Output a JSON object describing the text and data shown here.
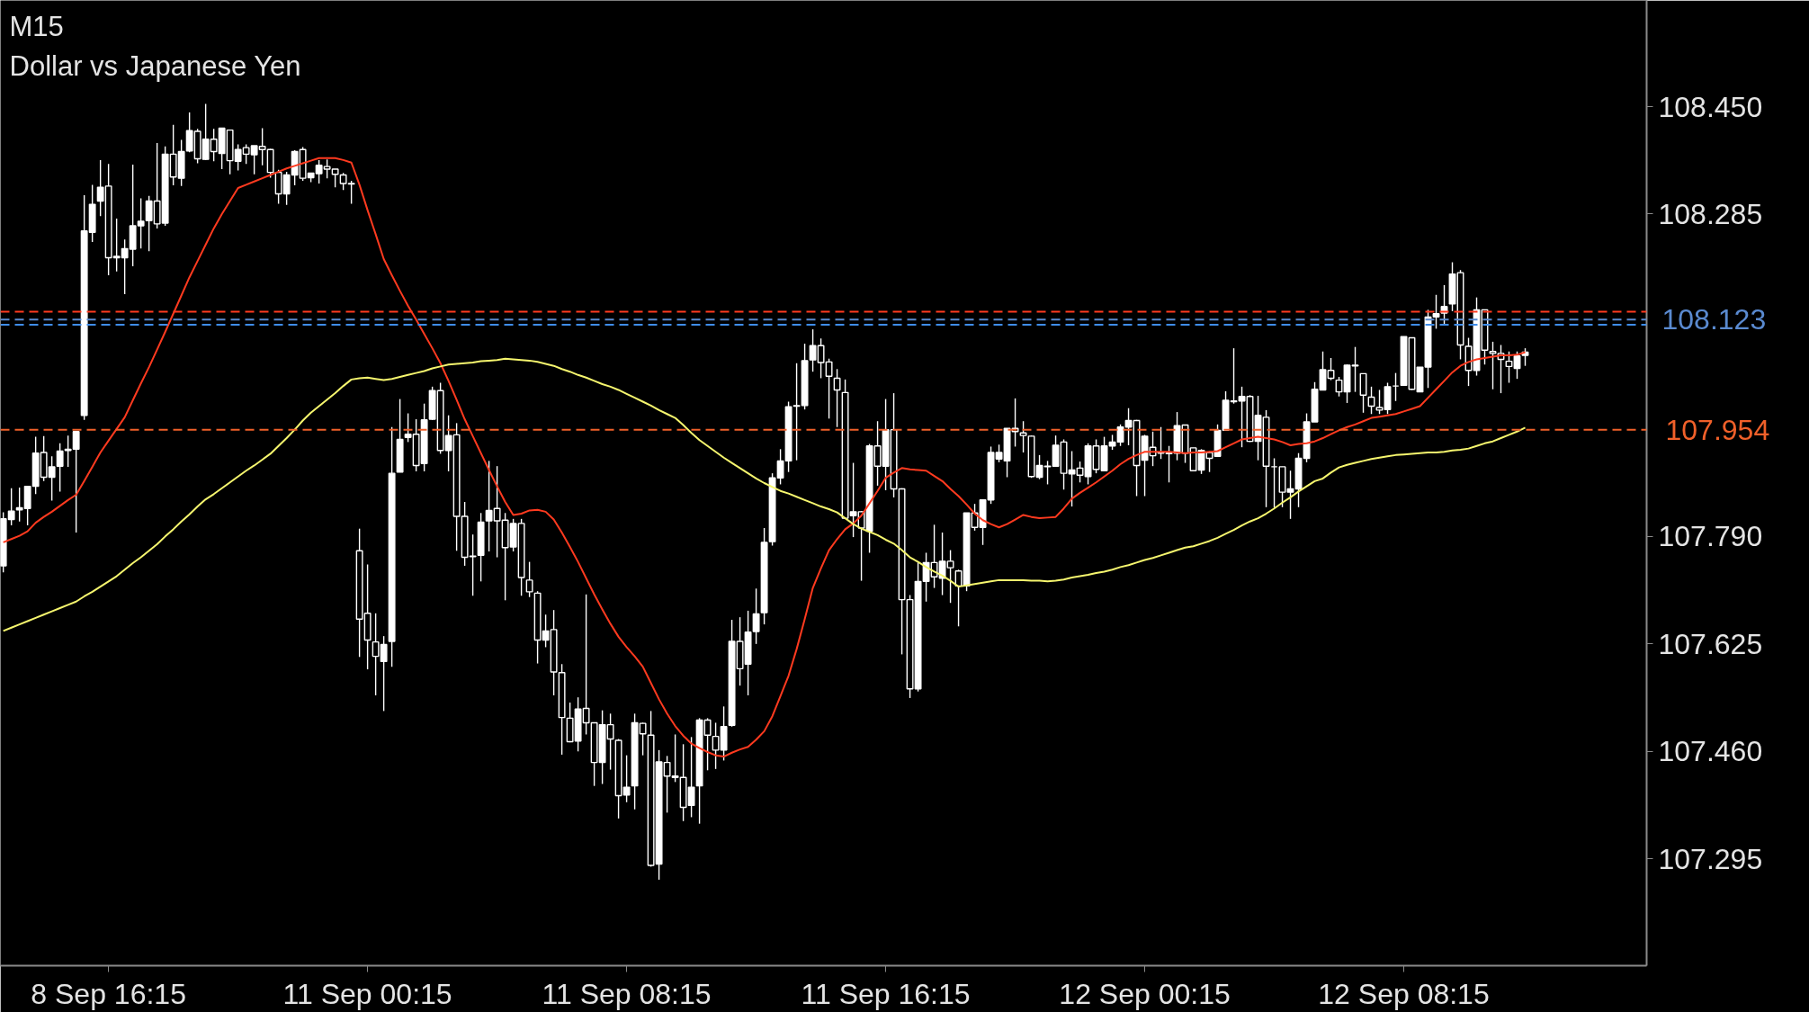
{
  "chart_data": {
    "type": "candlestick",
    "title": "M15",
    "subtitle": "Dollar vs Japanese Yen",
    "color": "#ffffff",
    "ylim": [
      107.131,
      108.613
    ],
    "yticks": [
      {
        "value": 108.45,
        "label": "108.450"
      },
      {
        "value": 108.285,
        "label": "108.285"
      },
      {
        "value": 107.79,
        "label": "107.790"
      },
      {
        "value": 107.625,
        "label": "107.625"
      },
      {
        "value": 107.46,
        "label": "107.460"
      },
      {
        "value": 107.295,
        "label": "107.295"
      }
    ],
    "categories": [
      null,
      null,
      null,
      null,
      null,
      null,
      null,
      null,
      null,
      null,
      null,
      null,
      null,
      "8 Sep 16:15",
      null,
      null,
      null,
      null,
      null,
      null,
      null,
      null,
      null,
      null,
      null,
      null,
      null,
      null,
      null,
      null,
      null,
      null,
      null,
      null,
      null,
      null,
      null,
      null,
      null,
      null,
      null,
      null,
      null,
      null,
      null,
      "11 Sep 00:15",
      null,
      null,
      null,
      null,
      null,
      null,
      null,
      null,
      null,
      null,
      null,
      null,
      null,
      null,
      null,
      null,
      null,
      null,
      null,
      null,
      null,
      null,
      null,
      null,
      null,
      null,
      null,
      null,
      null,
      null,
      null,
      "11 Sep 08:15",
      null,
      null,
      null,
      null,
      null,
      null,
      null,
      null,
      null,
      null,
      null,
      null,
      null,
      null,
      null,
      null,
      null,
      null,
      null,
      null,
      null,
      null,
      null,
      null,
      null,
      null,
      null,
      null,
      null,
      null,
      null,
      "11 Sep 16:15",
      null,
      null,
      null,
      null,
      null,
      null,
      null,
      null,
      null,
      null,
      null,
      null,
      null,
      null,
      null,
      null,
      null,
      null,
      null,
      null,
      null,
      null,
      null,
      null,
      null,
      null,
      null,
      null,
      null,
      null,
      null,
      "12 Sep 00:15",
      null,
      null,
      null,
      null,
      null,
      null,
      null,
      null,
      null,
      null,
      null,
      null,
      null,
      null,
      null,
      null,
      null,
      null,
      null,
      null,
      null,
      null,
      null,
      null,
      null,
      null,
      null,
      null,
      null,
      null,
      null,
      "12 Sep 08:15",
      null,
      null,
      null,
      null,
      null,
      null,
      null,
      null,
      null,
      null,
      null,
      null,
      null,
      null,
      null
    ],
    "ohlc": [
      [
        107.745,
        107.827,
        107.735,
        107.817
      ],
      [
        107.816,
        107.864,
        107.807,
        107.829
      ],
      [
        107.831,
        107.865,
        107.813,
        107.834
      ],
      [
        107.833,
        107.868,
        107.807,
        107.867
      ],
      [
        107.867,
        107.943,
        107.855,
        107.918
      ],
      [
        107.919,
        107.944,
        107.875,
        107.881
      ],
      [
        107.881,
        107.913,
        107.845,
        107.897
      ],
      [
        107.898,
        107.933,
        107.859,
        107.921
      ],
      [
        107.922,
        107.945,
        107.897,
        107.924
      ],
      [
        107.924,
        107.952,
        107.796,
        107.951
      ],
      [
        107.976,
        108.314,
        107.969,
        108.259
      ],
      [
        108.257,
        108.33,
        108.242,
        108.3
      ],
      [
        108.305,
        108.368,
        108.282,
        108.326
      ],
      [
        108.328,
        108.362,
        108.191,
        108.218
      ],
      [
        108.218,
        108.278,
        108.197,
        108.22
      ],
      [
        108.218,
        108.246,
        108.162,
        108.232
      ],
      [
        108.231,
        108.361,
        108.205,
        108.267
      ],
      [
        108.267,
        108.309,
        108.232,
        108.274
      ],
      [
        108.275,
        108.313,
        108.228,
        108.305
      ],
      [
        108.305,
        108.394,
        108.263,
        108.27
      ],
      [
        108.271,
        108.389,
        108.267,
        108.377
      ],
      [
        108.377,
        108.422,
        108.329,
        108.342
      ],
      [
        108.34,
        108.399,
        108.328,
        108.381
      ],
      [
        108.382,
        108.441,
        108.38,
        108.413
      ],
      [
        108.412,
        108.416,
        108.363,
        108.37
      ],
      [
        108.369,
        108.454,
        108.368,
        108.4
      ],
      [
        108.4,
        108.416,
        108.366,
        108.381
      ],
      [
        108.378,
        108.417,
        108.354,
        108.417
      ],
      [
        108.414,
        108.414,
        108.346,
        108.367
      ],
      [
        108.366,
        108.392,
        108.352,
        108.384
      ],
      [
        108.387,
        108.392,
        108.362,
        108.377
      ],
      [
        108.376,
        108.39,
        108.346,
        108.39
      ],
      [
        108.389,
        108.417,
        108.36,
        108.384
      ],
      [
        108.384,
        108.385,
        108.341,
        108.349
      ],
      [
        108.349,
        108.353,
        108.301,
        108.316
      ],
      [
        108.316,
        108.35,
        108.299,
        108.345
      ],
      [
        108.345,
        108.383,
        108.329,
        108.381
      ],
      [
        108.384,
        108.388,
        108.336,
        108.34
      ],
      [
        108.341,
        108.348,
        108.334,
        108.348
      ],
      [
        108.347,
        108.368,
        108.332,
        108.36
      ],
      [
        108.358,
        108.369,
        108.34,
        108.354
      ],
      [
        108.354,
        108.354,
        108.326,
        108.346
      ],
      [
        108.345,
        108.348,
        108.322,
        108.332
      ],
      [
        108.332,
        108.336,
        108.301,
        108.331
      ],
      [
        107.768,
        107.802,
        107.605,
        107.663
      ],
      [
        107.672,
        107.747,
        107.586,
        107.631
      ],
      [
        107.628,
        107.672,
        107.546,
        107.606
      ],
      [
        107.598,
        107.637,
        107.522,
        107.624
      ],
      [
        107.629,
        107.958,
        107.59,
        107.887
      ],
      [
        107.889,
        108.001,
        107.889,
        107.939
      ],
      [
        107.942,
        107.979,
        107.935,
        107.947
      ],
      [
        107.947,
        107.97,
        107.89,
        107.899
      ],
      [
        107.902,
        107.994,
        107.89,
        107.969
      ],
      [
        107.97,
        108.02,
        107.969,
        108.014
      ],
      [
        108.014,
        108.026,
        107.917,
        107.922
      ],
      [
        107.922,
        107.976,
        107.89,
        107.945
      ],
      [
        107.946,
        107.964,
        107.768,
        107.821
      ],
      [
        107.821,
        107.843,
        107.745,
        107.758
      ],
      [
        107.759,
        107.793,
        107.699,
        107.76
      ],
      [
        107.761,
        107.826,
        107.721,
        107.812
      ],
      [
        107.814,
        107.906,
        107.767,
        107.83
      ],
      [
        107.833,
        107.898,
        107.758,
        107.814
      ],
      [
        107.815,
        107.826,
        107.692,
        107.773
      ],
      [
        107.774,
        107.817,
        107.767,
        107.81
      ],
      [
        107.81,
        107.817,
        107.699,
        107.727
      ],
      [
        107.723,
        107.751,
        107.697,
        107.705
      ],
      [
        107.703,
        107.706,
        107.595,
        107.631
      ],
      [
        107.631,
        107.67,
        107.62,
        107.645
      ],
      [
        107.647,
        107.677,
        107.546,
        107.582
      ],
      [
        107.581,
        107.594,
        107.455,
        107.512
      ],
      [
        107.511,
        107.535,
        107.474,
        107.475
      ],
      [
        107.476,
        107.543,
        107.46,
        107.525
      ],
      [
        107.526,
        107.701,
        107.486,
        107.504
      ],
      [
        107.504,
        107.504,
        107.407,
        107.443
      ],
      [
        107.443,
        107.523,
        107.41,
        107.501
      ],
      [
        107.501,
        107.518,
        107.432,
        107.479
      ],
      [
        107.477,
        107.479,
        107.357,
        107.392
      ],
      [
        107.393,
        107.454,
        107.382,
        107.405
      ],
      [
        107.407,
        107.518,
        107.371,
        107.504
      ],
      [
        107.503,
        107.504,
        107.454,
        107.487
      ],
      [
        107.485,
        107.522,
        107.283,
        107.285
      ],
      [
        107.287,
        107.462,
        107.263,
        107.444
      ],
      [
        107.443,
        107.453,
        107.366,
        107.422
      ],
      [
        107.422,
        107.486,
        107.413,
        107.42
      ],
      [
        107.42,
        107.471,
        107.353,
        107.374
      ],
      [
        107.377,
        107.482,
        107.359,
        107.405
      ],
      [
        107.407,
        107.511,
        107.349,
        107.508
      ],
      [
        107.508,
        107.511,
        107.431,
        107.485
      ],
      [
        107.483,
        107.504,
        107.433,
        107.462
      ],
      [
        107.462,
        107.529,
        107.446,
        107.498
      ],
      [
        107.5,
        107.662,
        107.498,
        107.629
      ],
      [
        107.629,
        107.666,
        107.561,
        107.587
      ],
      [
        107.594,
        107.676,
        107.546,
        107.643
      ],
      [
        107.644,
        107.71,
        107.625,
        107.671
      ],
      [
        107.673,
        107.803,
        107.655,
        107.781
      ],
      [
        107.782,
        107.887,
        107.776,
        107.88
      ],
      [
        107.88,
        107.924,
        107.87,
        107.906
      ],
      [
        107.906,
        107.997,
        107.889,
        107.989
      ],
      [
        107.99,
        108.056,
        107.907,
        107.991
      ],
      [
        107.991,
        108.086,
        107.985,
        108.06
      ],
      [
        108.061,
        108.108,
        108.043,
        108.083
      ],
      [
        108.083,
        108.094,
        108.033,
        108.057
      ],
      [
        108.058,
        108.063,
        107.971,
        108.036
      ],
      [
        108.033,
        108.047,
        107.958,
        108.015
      ],
      [
        108.011,
        108.031,
        107.817,
        107.818
      ],
      [
        107.822,
        107.903,
        107.789,
        107.828
      ],
      [
        107.828,
        107.829,
        107.722,
        107.803
      ],
      [
        107.798,
        107.932,
        107.765,
        107.929
      ],
      [
        107.929,
        107.967,
        107.868,
        107.898
      ],
      [
        107.898,
        108.001,
        107.861,
        107.954
      ],
      [
        107.954,
        108.01,
        107.85,
        107.863
      ],
      [
        107.863,
        107.864,
        107.609,
        107.693
      ],
      [
        107.693,
        107.7,
        107.542,
        107.556
      ],
      [
        107.556,
        107.751,
        107.552,
        107.721
      ],
      [
        107.721,
        107.765,
        107.69,
        107.75
      ],
      [
        107.75,
        107.808,
        107.711,
        107.728
      ],
      [
        107.726,
        107.796,
        107.7,
        107.752
      ],
      [
        107.752,
        107.769,
        107.688,
        107.742
      ],
      [
        107.737,
        107.739,
        107.652,
        107.714
      ],
      [
        107.714,
        107.826,
        107.706,
        107.826
      ],
      [
        107.826,
        107.84,
        107.799,
        107.804
      ],
      [
        107.804,
        107.846,
        107.777,
        107.846
      ],
      [
        107.846,
        107.928,
        107.84,
        107.919
      ],
      [
        107.909,
        107.931,
        107.904,
        107.919
      ],
      [
        107.906,
        107.956,
        107.881,
        107.956
      ],
      [
        107.956,
        108.002,
        107.928,
        107.951
      ],
      [
        107.949,
        107.967,
        107.919,
        107.945
      ],
      [
        107.944,
        107.945,
        107.88,
        107.882
      ],
      [
        107.881,
        107.915,
        107.878,
        107.899
      ],
      [
        107.898,
        107.906,
        107.87,
        107.897
      ],
      [
        107.898,
        107.945,
        107.897,
        107.93
      ],
      [
        107.935,
        107.939,
        107.862,
        107.887
      ],
      [
        107.886,
        107.921,
        107.836,
        107.892
      ],
      [
        107.895,
        107.905,
        107.873,
        107.884
      ],
      [
        107.882,
        107.933,
        107.87,
        107.929
      ],
      [
        107.929,
        107.939,
        107.887,
        107.893
      ],
      [
        107.891,
        107.943,
        107.891,
        107.929
      ],
      [
        107.929,
        107.946,
        107.923,
        107.935
      ],
      [
        107.935,
        107.962,
        107.929,
        107.958
      ],
      [
        107.958,
        107.987,
        107.93,
        107.968
      ],
      [
        107.968,
        107.969,
        107.852,
        107.899
      ],
      [
        107.907,
        107.946,
        107.852,
        107.944
      ],
      [
        107.927,
        107.951,
        107.898,
        107.914
      ],
      [
        107.919,
        107.958,
        107.909,
        107.918
      ],
      [
        107.917,
        107.929,
        107.873,
        107.918
      ],
      [
        107.918,
        107.981,
        107.907,
        107.96
      ],
      [
        107.961,
        107.961,
        107.903,
        107.918
      ],
      [
        107.926,
        107.926,
        107.89,
        107.891
      ],
      [
        107.892,
        107.924,
        107.886,
        107.922
      ],
      [
        107.919,
        107.921,
        107.889,
        107.91
      ],
      [
        107.913,
        107.962,
        107.912,
        107.953
      ],
      [
        107.953,
        108.013,
        107.953,
        107.999
      ],
      [
        107.998,
        108.079,
        107.994,
        107.997
      ],
      [
        107.998,
        108.02,
        107.927,
        108.005
      ],
      [
        108.005,
        108.007,
        107.935,
        107.936
      ],
      [
        107.936,
        108.006,
        107.907,
        107.976
      ],
      [
        107.973,
        107.984,
        107.835,
        107.898
      ],
      [
        107.897,
        107.91,
        107.834,
        107.897
      ],
      [
        107.897,
        107.897,
        107.835,
        107.858
      ],
      [
        107.858,
        107.891,
        107.817,
        107.863
      ],
      [
        107.863,
        107.918,
        107.835,
        107.91
      ],
      [
        107.91,
        107.979,
        107.904,
        107.966
      ],
      [
        107.966,
        108.027,
        107.966,
        108.016
      ],
      [
        108.015,
        108.074,
        108.015,
        108.046
      ],
      [
        108.045,
        108.064,
        108.03,
        108.033
      ],
      [
        108.03,
        108.035,
        108.005,
        108.012
      ],
      [
        108.012,
        108.054,
        107.995,
        108.053
      ],
      [
        108.052,
        108.081,
        108.012,
        108.053
      ],
      [
        108.04,
        108.04,
        107.98,
        108.007
      ],
      [
        108.004,
        108.02,
        107.978,
        107.99
      ],
      [
        107.988,
        108.015,
        107.978,
        107.984
      ],
      [
        107.985,
        108.026,
        107.978,
        108.02
      ],
      [
        108.021,
        108.041,
        107.998,
        108.021
      ],
      [
        108.022,
        108.097,
        108.022,
        108.097
      ],
      [
        108.095,
        108.095,
        108.015,
        108.016
      ],
      [
        108.012,
        108.05,
        108.012,
        108.05
      ],
      [
        108.05,
        108.138,
        108.018,
        108.127
      ],
      [
        108.127,
        108.161,
        108.109,
        108.132
      ],
      [
        108.133,
        108.176,
        108.116,
        108.143
      ],
      [
        108.147,
        108.211,
        108.136,
        108.193
      ],
      [
        108.195,
        108.199,
        108.062,
        108.084
      ],
      [
        108.082,
        108.095,
        108.021,
        108.045
      ],
      [
        108.045,
        108.157,
        108.037,
        108.138
      ],
      [
        108.138,
        108.138,
        108.054,
        108.076
      ],
      [
        108.074,
        108.089,
        108.016,
        108.071
      ],
      [
        108.071,
        108.084,
        108.01,
        108.062
      ],
      [
        108.059,
        108.074,
        108.026,
        108.051
      ],
      [
        108.048,
        108.074,
        108.032,
        108.067
      ],
      [
        108.068,
        108.079,
        108.052,
        108.073
      ]
    ],
    "series": [
      {
        "type": "line",
        "color": "#ff3a1f",
        "values": [
          107.781,
          107.786,
          107.791,
          107.798,
          107.811,
          107.82,
          107.828,
          107.837,
          107.846,
          107.854,
          107.875,
          107.897,
          107.919,
          107.937,
          107.955,
          107.973,
          107.999,
          108.025,
          108.05,
          108.077,
          108.104,
          108.132,
          108.16,
          108.188,
          108.213,
          108.238,
          108.263,
          108.285,
          108.305,
          108.325,
          108.33,
          108.335,
          108.34,
          108.345,
          108.35,
          108.355,
          108.359,
          108.363,
          108.367,
          108.371,
          108.371,
          108.371,
          108.368,
          108.364,
          108.33,
          108.291,
          108.254,
          108.216,
          108.191,
          108.167,
          108.144,
          108.123,
          108.101,
          108.079,
          108.056,
          108.029,
          108.0,
          107.97,
          107.944,
          107.918,
          107.892,
          107.867,
          107.843,
          107.823,
          107.825,
          107.83,
          107.831,
          107.828,
          107.816,
          107.796,
          107.774,
          107.751,
          107.726,
          107.701,
          107.678,
          107.656,
          107.636,
          107.62,
          107.606,
          107.59,
          107.565,
          107.54,
          107.518,
          107.499,
          107.484,
          107.472,
          107.465,
          107.459,
          107.454,
          107.452,
          107.458,
          107.463,
          107.467,
          107.478,
          107.491,
          107.514,
          107.545,
          107.576,
          107.617,
          107.663,
          107.711,
          107.741,
          107.769,
          107.786,
          107.801,
          107.81,
          107.822,
          107.841,
          107.86,
          107.88,
          107.888,
          107.895,
          107.893,
          107.892,
          107.891,
          107.883,
          107.875,
          107.863,
          107.852,
          107.839,
          107.825,
          107.815,
          107.809,
          107.804,
          107.809,
          107.816,
          107.823,
          107.82,
          107.818,
          107.819,
          107.82,
          107.833,
          107.848,
          107.857,
          107.865,
          107.873,
          107.882,
          107.891,
          107.901,
          107.909,
          107.915,
          107.92,
          107.92,
          107.92,
          107.92,
          107.919,
          107.918,
          107.919,
          107.919,
          107.92,
          107.921,
          107.927,
          107.933,
          107.939,
          107.941,
          107.943,
          107.941,
          107.939,
          107.935,
          107.93,
          107.932,
          107.933,
          107.936,
          107.941,
          107.947,
          107.953,
          107.958,
          107.962,
          107.967,
          107.972,
          107.974,
          107.976,
          107.978,
          107.982,
          107.986,
          107.99,
          108.003,
          108.016,
          108.029,
          108.042,
          108.052,
          108.058,
          108.062,
          108.064,
          108.066,
          108.068,
          108.068,
          108.069,
          108.073
        ]
      },
      {
        "type": "line",
        "color": "#f6f66e",
        "values": [
          107.645,
          107.65,
          107.655,
          107.66,
          107.665,
          107.67,
          107.675,
          107.68,
          107.685,
          107.69,
          107.698,
          107.705,
          107.713,
          107.721,
          107.729,
          107.739,
          107.749,
          107.758,
          107.768,
          107.778,
          107.79,
          107.801,
          107.813,
          107.824,
          107.836,
          107.847,
          107.855,
          107.864,
          107.873,
          107.882,
          107.891,
          107.899,
          107.908,
          107.917,
          107.929,
          107.941,
          107.954,
          107.968,
          107.98,
          107.99,
          108.0,
          108.01,
          108.021,
          108.031,
          108.033,
          108.034,
          108.032,
          108.03,
          108.032,
          108.035,
          108.038,
          108.041,
          108.044,
          108.048,
          108.051,
          108.054,
          108.055,
          108.056,
          108.057,
          108.059,
          108.06,
          108.061,
          108.063,
          108.062,
          108.061,
          108.06,
          108.058,
          108.055,
          108.052,
          108.047,
          108.043,
          108.038,
          108.034,
          108.029,
          108.024,
          108.02,
          108.015,
          108.009,
          108.003,
          107.997,
          107.991,
          107.984,
          107.978,
          107.972,
          107.961,
          107.949,
          107.938,
          107.929,
          107.92,
          107.911,
          107.903,
          107.895,
          107.887,
          107.879,
          107.872,
          107.866,
          107.86,
          107.856,
          107.851,
          107.846,
          107.841,
          107.836,
          107.832,
          107.827,
          107.818,
          107.809,
          107.802,
          107.797,
          107.792,
          107.785,
          107.779,
          107.769,
          107.758,
          107.751,
          107.743,
          107.736,
          107.73,
          107.722,
          107.713,
          107.715,
          107.717,
          107.719,
          107.721,
          107.723,
          107.723,
          107.723,
          107.723,
          107.722,
          107.722,
          107.721,
          107.722,
          107.724,
          107.727,
          107.729,
          107.731,
          107.734,
          107.736,
          107.739,
          107.743,
          107.746,
          107.75,
          107.754,
          107.757,
          107.761,
          107.765,
          107.769,
          107.773,
          107.775,
          107.779,
          107.783,
          107.788,
          107.794,
          107.8,
          107.807,
          107.813,
          107.818,
          107.825,
          107.833,
          107.842,
          107.85,
          107.859,
          107.867,
          107.875,
          107.879,
          107.888,
          107.896,
          107.9,
          107.903,
          107.906,
          107.909,
          107.911,
          107.913,
          107.915,
          107.916,
          107.917,
          107.918,
          107.919,
          107.919,
          107.92,
          107.922,
          107.923,
          107.925,
          107.929,
          107.933,
          107.936,
          107.941,
          107.946,
          107.951,
          107.957
        ]
      }
    ],
    "ref_lines": [
      {
        "axis": "y",
        "value": 108.135,
        "color": "#ff3b1f",
        "line_style": "dashed"
      },
      {
        "axis": "y",
        "value": 108.123,
        "label": "108.123",
        "color": "#5a8ad0",
        "line_style": "dashed"
      },
      {
        "axis": "y",
        "value": 108.115,
        "color": "#3f8ce8",
        "line_style": "dashed"
      },
      {
        "axis": "y",
        "value": 107.954,
        "label": "107.954",
        "color": "#f0602a",
        "line_style": "dashed"
      }
    ]
  }
}
